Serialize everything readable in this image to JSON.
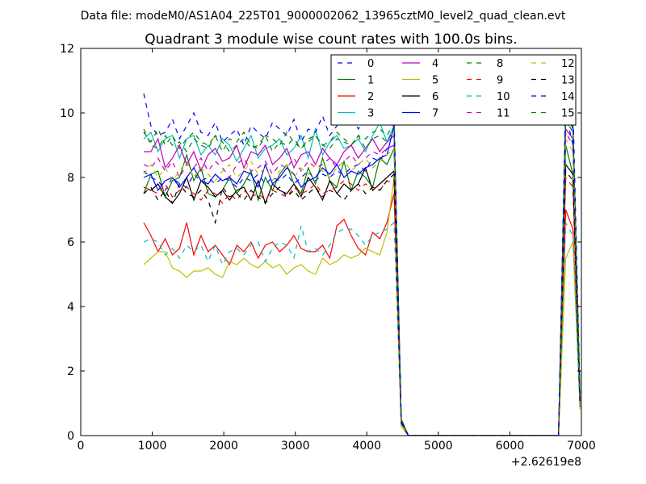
{
  "chart_data": {
    "type": "line",
    "suptitle": "Data file: modeM0/AS1A04_225T01_9000002062_13965cztM0_level2_quad_clean.evt",
    "title": "Quadrant 3 module wise count rates with 100.0s bins.",
    "xlabel": "",
    "ylabel": "",
    "x_offset_label": "+2.62619e8",
    "xlim": [
      0,
      7000
    ],
    "ylim": [
      0,
      12
    ],
    "xticks": [
      0,
      1000,
      2000,
      3000,
      4000,
      5000,
      6000,
      7000
    ],
    "yticks": [
      0,
      2,
      4,
      6,
      8,
      10,
      12
    ],
    "grid": false,
    "legend": {
      "position": "top-right",
      "columns": 4
    },
    "x": [
      881,
      981,
      1081,
      1181,
      1281,
      1381,
      1481,
      1581,
      1681,
      1781,
      1881,
      1981,
      2081,
      2181,
      2281,
      2381,
      2481,
      2581,
      2681,
      2781,
      2881,
      2981,
      3081,
      3181,
      3281,
      3381,
      3481,
      3581,
      3681,
      3781,
      3881,
      3981,
      4081,
      4181,
      4281,
      4381,
      4481,
      4581,
      4681,
      4781,
      4881,
      4981,
      5081,
      5181,
      5281,
      5381,
      5481,
      5581,
      5681,
      5781,
      5881,
      5981,
      6081,
      6181,
      6281,
      6381,
      6481,
      6581,
      6681,
      6781,
      6881,
      6981
    ],
    "series": [
      {
        "name": "0",
        "color": "#0000ff",
        "dash": "dashed",
        "values": [
          8.2,
          8.0,
          7.9,
          7.6,
          8.0,
          7.8,
          7.7,
          8.1,
          7.9,
          8.0,
          7.8,
          8.0,
          7.9,
          7.7,
          8.0,
          7.9,
          8.1,
          7.8,
          8.0,
          7.9,
          8.1,
          7.8,
          8.0,
          8.2,
          7.9,
          8.1,
          8.0,
          8.2,
          8.1,
          8.3,
          8.4,
          8.2,
          8.6,
          8.5,
          8.9,
          9.0,
          0.5,
          0.0,
          0,
          0,
          0,
          0,
          0,
          0,
          0,
          0,
          0,
          0,
          0,
          0,
          0,
          0,
          0,
          0,
          0,
          0,
          0,
          0,
          0,
          10.0,
          9.0,
          1.2
        ]
      },
      {
        "name": "1",
        "color": "#008000",
        "dash": "solid",
        "values": [
          7.5,
          8.1,
          8.2,
          7.4,
          7.9,
          8.0,
          8.7,
          7.9,
          8.3,
          7.5,
          7.4,
          7.6,
          8.0,
          7.5,
          7.8,
          8.2,
          7.3,
          8.0,
          7.6,
          8.1,
          8.4,
          7.8,
          7.5,
          8.3,
          7.8,
          8.6,
          7.9,
          7.7,
          8.5,
          7.6,
          8.2,
          8.0,
          7.7,
          8.6,
          8.4,
          8.9,
          0.4,
          0.0,
          0,
          0,
          0,
          0,
          0,
          0,
          0,
          0,
          0,
          0,
          0,
          0,
          0,
          0,
          0,
          0,
          0,
          0,
          0,
          0,
          0,
          9.0,
          8.1,
          1.0
        ]
      },
      {
        "name": "2",
        "color": "#ff0000",
        "dash": "solid",
        "values": [
          6.6,
          6.2,
          5.7,
          6.1,
          5.6,
          5.8,
          6.6,
          5.6,
          6.2,
          5.7,
          5.9,
          5.6,
          5.3,
          5.9,
          5.7,
          6.0,
          5.5,
          5.9,
          6.0,
          5.7,
          5.9,
          6.2,
          5.8,
          5.7,
          5.7,
          5.9,
          5.5,
          6.5,
          6.7,
          6.2,
          5.8,
          5.6,
          6.3,
          6.1,
          6.6,
          7.5,
          0.3,
          0.0,
          0,
          0,
          0,
          0,
          0,
          0,
          0,
          0,
          0,
          0,
          0,
          0,
          0,
          0,
          0,
          0,
          0,
          0,
          0,
          0,
          0,
          7.0,
          6.4,
          0.9
        ]
      },
      {
        "name": "3",
        "color": "#00bfbf",
        "dash": "solid",
        "values": [
          9.2,
          9.4,
          8.8,
          9.2,
          9.3,
          8.6,
          9.2,
          9.3,
          8.7,
          9.0,
          8.7,
          9.2,
          9.0,
          8.5,
          8.9,
          9.3,
          8.6,
          8.9,
          9.0,
          9.2,
          8.7,
          8.9,
          9.3,
          8.6,
          9.5,
          8.7,
          9.1,
          9.3,
          8.9,
          9.0,
          9.2,
          8.8,
          9.3,
          9.7,
          9.1,
          9.6,
          0.5,
          0.0,
          0,
          0,
          0,
          0,
          0,
          0,
          0,
          0,
          0,
          0,
          0,
          0,
          0,
          0,
          0,
          0,
          0,
          0,
          0,
          0,
          0,
          10.3,
          9.7,
          1.2
        ]
      },
      {
        "name": "4",
        "color": "#bf00bf",
        "dash": "solid",
        "values": [
          8.8,
          8.8,
          9.2,
          8.3,
          8.6,
          9.0,
          8.4,
          8.8,
          8.2,
          8.7,
          8.9,
          8.5,
          8.6,
          9.0,
          8.3,
          8.8,
          8.7,
          9.0,
          8.4,
          8.6,
          8.9,
          8.3,
          8.7,
          8.8,
          8.4,
          8.9,
          8.6,
          8.4,
          8.8,
          9.0,
          8.6,
          8.9,
          9.2,
          8.8,
          9.1,
          9.3,
          0.5,
          0.0,
          0,
          0,
          0,
          0,
          0,
          0,
          0,
          0,
          0,
          0,
          0,
          0,
          0,
          0,
          0,
          0,
          0,
          0,
          0,
          0,
          0,
          9.5,
          9.2,
          1.1
        ]
      },
      {
        "name": "5",
        "color": "#bfbf00",
        "dash": "solid",
        "values": [
          5.3,
          5.5,
          5.7,
          5.7,
          5.2,
          5.1,
          4.9,
          5.1,
          5.1,
          5.2,
          5.0,
          4.9,
          5.4,
          5.3,
          5.5,
          5.3,
          5.2,
          5.4,
          5.2,
          5.3,
          5.0,
          5.2,
          5.3,
          5.1,
          5.0,
          5.5,
          5.3,
          5.4,
          5.6,
          5.5,
          5.6,
          5.8,
          5.7,
          5.6,
          6.3,
          8.0,
          0.3,
          0.0,
          0,
          0,
          0,
          0,
          0,
          0,
          0,
          0,
          0,
          0,
          0,
          0,
          0,
          0,
          0,
          0,
          0,
          0,
          0,
          0,
          0,
          5.5,
          6.0,
          0.8
        ]
      },
      {
        "name": "6",
        "color": "#000000",
        "dash": "solid",
        "values": [
          7.7,
          7.6,
          7.8,
          7.4,
          7.2,
          7.5,
          8.0,
          7.3,
          7.9,
          7.7,
          7.4,
          7.6,
          7.3,
          7.6,
          7.7,
          7.3,
          7.9,
          7.2,
          7.8,
          7.6,
          7.5,
          7.8,
          7.4,
          8.0,
          7.7,
          7.3,
          7.9,
          7.5,
          7.8,
          7.6,
          7.8,
          8.3,
          7.6,
          7.8,
          8.0,
          8.2,
          0.4,
          0.0,
          0,
          0,
          0,
          0,
          0,
          0,
          0,
          0,
          0,
          0,
          0,
          0,
          0,
          0,
          0,
          0,
          0,
          0,
          0,
          0,
          0,
          8.4,
          8.1,
          1.0
        ]
      },
      {
        "name": "7",
        "color": "#0000ff",
        "dash": "solid",
        "values": [
          8.0,
          8.1,
          7.6,
          7.9,
          8.0,
          7.7,
          8.0,
          8.3,
          7.9,
          7.8,
          8.1,
          7.9,
          8.0,
          7.8,
          8.2,
          8.1,
          7.7,
          8.4,
          7.8,
          8.0,
          8.3,
          8.1,
          7.7,
          7.9,
          8.0,
          8.3,
          8.1,
          8.4,
          8.0,
          8.2,
          8.1,
          8.3,
          8.4,
          8.6,
          8.7,
          9.6,
          0.5,
          0.0,
          0,
          0,
          0,
          0,
          0,
          0,
          0,
          0,
          0,
          0,
          0,
          0,
          0,
          0,
          0,
          0,
          0,
          0,
          0,
          0,
          0,
          10.1,
          9.5,
          1.1
        ]
      },
      {
        "name": "8",
        "color": "#008000",
        "dash": "dashed",
        "values": [
          9.5,
          9.0,
          8.9,
          9.3,
          9.0,
          9.1,
          8.8,
          9.2,
          9.0,
          8.9,
          9.3,
          9.1,
          8.8,
          9.0,
          9.2,
          8.9,
          9.0,
          9.3,
          8.8,
          9.1,
          9.0,
          9.2,
          8.9,
          9.1,
          9.3,
          9.0,
          8.9,
          9.2,
          9.1,
          9.0,
          9.3,
          8.9,
          9.2,
          9.3,
          9.1,
          9.5,
          0.5,
          0.0,
          0,
          0,
          0,
          0,
          0,
          0,
          0,
          0,
          0,
          0,
          0,
          0,
          0,
          0,
          0,
          0,
          0,
          0,
          0,
          0,
          0,
          9.8,
          9.4,
          1.1
        ]
      },
      {
        "name": "9",
        "color": "#ff0000",
        "dash": "dashed",
        "values": [
          7.7,
          7.6,
          7.5,
          7.8,
          7.4,
          7.6,
          7.7,
          7.5,
          7.3,
          7.6,
          7.5,
          7.2,
          7.5,
          7.3,
          7.6,
          7.4,
          7.5,
          7.3,
          7.6,
          7.5,
          7.4,
          7.7,
          7.5,
          7.6,
          7.8,
          7.5,
          7.6,
          7.7,
          7.9,
          7.8,
          7.6,
          7.8,
          7.7,
          7.6,
          7.9,
          7.8,
          0.4,
          0.0,
          0,
          0,
          0,
          0,
          0,
          0,
          0,
          0,
          0,
          0,
          0,
          0,
          0,
          0,
          0,
          0,
          0,
          0,
          0,
          0,
          0,
          8.0,
          7.7,
          0.9
        ]
      },
      {
        "name": "10",
        "color": "#00bfbf",
        "dash": "dashed",
        "values": [
          6.0,
          6.1,
          6.0,
          5.6,
          5.8,
          5.5,
          5.9,
          5.7,
          5.9,
          5.4,
          5.9,
          5.3,
          5.7,
          5.8,
          5.6,
          5.9,
          6.0,
          5.4,
          5.8,
          6.0,
          5.9,
          5.5,
          6.5,
          5.7,
          5.8,
          5.6,
          5.9,
          6.3,
          6.4,
          6.4,
          6.2,
          5.9,
          6.2,
          6.3,
          6.4,
          6.6,
          0.3,
          0.0,
          0,
          0,
          0,
          0,
          0,
          0,
          0,
          0,
          0,
          0,
          0,
          0,
          0,
          0,
          0,
          0,
          0,
          0,
          0,
          0,
          0,
          6.6,
          6.2,
          0.9
        ]
      },
      {
        "name": "11",
        "color": "#bf00bf",
        "dash": "dashed",
        "values": [
          8.4,
          8.3,
          8.6,
          8.2,
          8.5,
          8.0,
          8.4,
          8.3,
          8.6,
          8.2,
          8.5,
          8.3,
          8.0,
          8.4,
          8.6,
          8.2,
          8.3,
          8.5,
          8.1,
          8.4,
          8.3,
          8.6,
          8.2,
          8.5,
          8.3,
          8.4,
          8.6,
          8.3,
          8.5,
          8.7,
          8.4,
          8.6,
          8.8,
          8.7,
          8.9,
          9.0,
          0.5,
          0.0,
          0,
          0,
          0,
          0,
          0,
          0,
          0,
          0,
          0,
          0,
          0,
          0,
          0,
          0,
          0,
          0,
          0,
          0,
          0,
          0,
          0,
          9.4,
          9.0,
          1.1
        ]
      },
      {
        "name": "12",
        "color": "#bfbf00",
        "dash": "dashed",
        "values": [
          8.1,
          8.4,
          8.0,
          8.3,
          7.9,
          8.2,
          8.5,
          8.0,
          8.3,
          8.1,
          7.9,
          8.2,
          8.4,
          8.0,
          8.2,
          8.5,
          8.1,
          8.3,
          7.9,
          8.2,
          8.4,
          8.0,
          8.3,
          8.1,
          8.4,
          8.2,
          8.0,
          8.3,
          8.5,
          8.2,
          8.4,
          8.6,
          8.3,
          8.5,
          8.7,
          8.9,
          0.4,
          0.0,
          0,
          0,
          0,
          0,
          0,
          0,
          0,
          0,
          0,
          0,
          0,
          0,
          0,
          0,
          0,
          0,
          0,
          0,
          0,
          0,
          0,
          9.2,
          8.8,
          1.0
        ]
      },
      {
        "name": "13",
        "color": "#000000",
        "dash": "dashed",
        "values": [
          7.5,
          7.7,
          7.3,
          7.6,
          7.2,
          7.8,
          7.5,
          7.4,
          7.6,
          7.3,
          6.6,
          7.7,
          7.4,
          7.5,
          7.3,
          7.6,
          7.4,
          7.2,
          7.5,
          7.7,
          7.4,
          7.6,
          7.3,
          7.5,
          7.7,
          7.4,
          7.6,
          7.5,
          7.3,
          7.6,
          7.8,
          7.5,
          7.7,
          7.6,
          7.9,
          8.1,
          0.4,
          0.0,
          0,
          0,
          0,
          0,
          0,
          0,
          0,
          0,
          0,
          0,
          0,
          0,
          0,
          0,
          0,
          0,
          0,
          0,
          0,
          0,
          0,
          8.2,
          7.9,
          0.9
        ]
      },
      {
        "name": "14",
        "color": "#0000ff",
        "dash": "dashed",
        "values": [
          10.6,
          9.6,
          9.3,
          9.4,
          9.8,
          9.2,
          9.6,
          10.0,
          9.4,
          9.3,
          9.7,
          9.1,
          9.3,
          9.5,
          9.0,
          9.6,
          9.4,
          9.2,
          9.7,
          9.5,
          9.3,
          9.8,
          9.1,
          9.5,
          9.4,
          9.9,
          9.3,
          9.6,
          10.2,
          10.0,
          9.5,
          9.8,
          10.1,
          9.7,
          9.9,
          10.0,
          0.5,
          0.0,
          0,
          0,
          0,
          0,
          0,
          0,
          0,
          0,
          0,
          0,
          0,
          0,
          0,
          0,
          0,
          0,
          0,
          0,
          0,
          0,
          0,
          10.7,
          10.3,
          1.3
        ]
      },
      {
        "name": "15",
        "color": "#008000",
        "dash": "dashed",
        "values": [
          9.4,
          9.1,
          9.5,
          9.0,
          9.3,
          8.9,
          9.2,
          9.4,
          9.1,
          9.0,
          9.3,
          8.8,
          9.2,
          9.1,
          9.4,
          9.0,
          8.9,
          9.3,
          9.2,
          9.0,
          9.4,
          9.1,
          8.9,
          9.2,
          9.3,
          9.0,
          9.1,
          9.4,
          9.2,
          9.0,
          9.3,
          9.2,
          9.4,
          9.5,
          9.3,
          9.7,
          0.5,
          0.0,
          0,
          0,
          0,
          0,
          0,
          0,
          0,
          0,
          0,
          0,
          0,
          0,
          0,
          0,
          0,
          0,
          0,
          0,
          0,
          0,
          0,
          10.0,
          9.6,
          1.2
        ]
      }
    ]
  }
}
